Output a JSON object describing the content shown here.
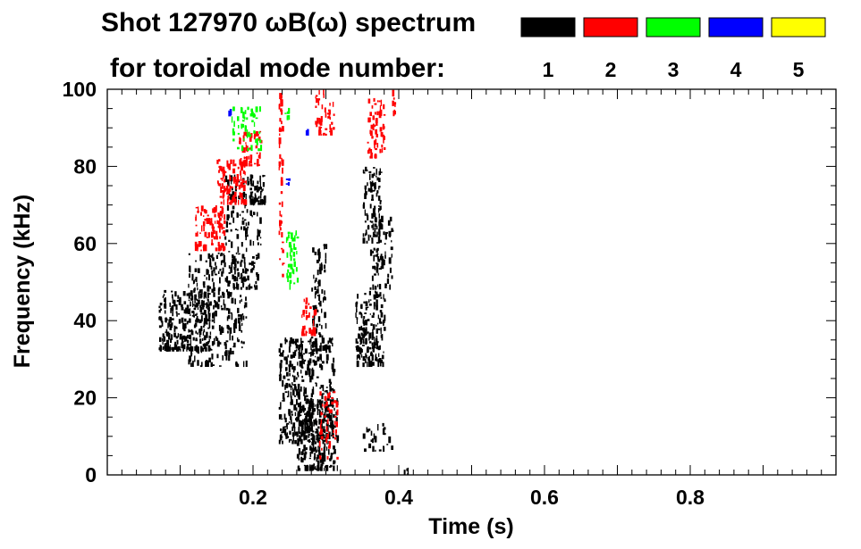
{
  "header": {
    "title": "Shot 127970 ωB(ω) spectrum",
    "subtitle": "for toroidal mode number:"
  },
  "legend": {
    "placement": "top-right",
    "items": [
      {
        "label": "1",
        "color": "#000000"
      },
      {
        "label": "2",
        "color": "#ff0000"
      },
      {
        "label": "3",
        "color": "#00ff00"
      },
      {
        "label": "4",
        "color": "#0000ff"
      },
      {
        "label": "5",
        "color": "#ffff00"
      }
    ]
  },
  "chart_data": {
    "type": "heatmap",
    "title": "Shot 127970 ωB(ω) spectrum",
    "subtitle": "for toroidal mode number:",
    "xlabel": "Time (s)",
    "ylabel": "Frequency (kHz)",
    "xlim": [
      0,
      1.0
    ],
    "ylim": [
      0,
      100
    ],
    "x_ticks": [
      {
        "value": 0.2,
        "label": "0.2"
      },
      {
        "value": 0.4,
        "label": "0.4"
      },
      {
        "value": 0.6,
        "label": "0.6"
      },
      {
        "value": 0.8,
        "label": "0.8"
      }
    ],
    "y_ticks": [
      {
        "value": 0,
        "label": "0"
      },
      {
        "value": 20,
        "label": "20"
      },
      {
        "value": 40,
        "label": "40"
      },
      {
        "value": 60,
        "label": "60"
      },
      {
        "value": 80,
        "label": "80"
      },
      {
        "value": 100,
        "label": "100"
      }
    ],
    "grid": false,
    "series": [
      {
        "name": "1",
        "color": "#000000",
        "regions": [
          {
            "x": [
              0.07,
              0.14
            ],
            "y": [
              32,
              48
            ],
            "density": 0.55
          },
          {
            "x": [
              0.11,
              0.19
            ],
            "y": [
              28,
              58
            ],
            "density": 0.3
          },
          {
            "x": [
              0.16,
              0.21
            ],
            "y": [
              48,
              78
            ],
            "density": 0.25
          },
          {
            "x": [
              0.195,
              0.215
            ],
            "y": [
              70,
              78
            ],
            "density": 0.75
          },
          {
            "x": [
              0.235,
              0.31
            ],
            "y": [
              8,
              36
            ],
            "density": 0.45
          },
          {
            "x": [
              0.26,
              0.315
            ],
            "y": [
              1,
              20
            ],
            "density": 0.6
          },
          {
            "x": [
              0.28,
              0.3
            ],
            "y": [
              32,
              60
            ],
            "density": 0.35
          },
          {
            "x": [
              0.34,
              0.38
            ],
            "y": [
              28,
              48
            ],
            "density": 0.55
          },
          {
            "x": [
              0.35,
              0.375
            ],
            "y": [
              60,
              80
            ],
            "density": 0.45
          },
          {
            "x": [
              0.36,
              0.39
            ],
            "y": [
              48,
              68
            ],
            "density": 0.3
          },
          {
            "x": [
              0.35,
              0.39
            ],
            "y": [
              6,
              14
            ],
            "density": 0.2
          },
          {
            "x": [
              0.405,
              0.415
            ],
            "y": [
              0,
              2
            ],
            "density": 0.5
          }
        ]
      },
      {
        "name": "2",
        "color": "#ff0000",
        "regions": [
          {
            "x": [
              0.12,
              0.16
            ],
            "y": [
              58,
              70
            ],
            "density": 0.55
          },
          {
            "x": [
              0.15,
              0.19
            ],
            "y": [
              70,
              82
            ],
            "density": 0.55
          },
          {
            "x": [
              0.18,
              0.21
            ],
            "y": [
              80,
              90
            ],
            "density": 0.45
          },
          {
            "x": [
              0.235,
              0.24
            ],
            "y": [
              50,
              100
            ],
            "density": 0.5
          },
          {
            "x": [
              0.265,
              0.285
            ],
            "y": [
              36,
              46
            ],
            "density": 0.5
          },
          {
            "x": [
              0.285,
              0.31
            ],
            "y": [
              88,
              100
            ],
            "density": 0.4
          },
          {
            "x": [
              0.29,
              0.315
            ],
            "y": [
              4,
              22
            ],
            "density": 0.3
          },
          {
            "x": [
              0.355,
              0.38
            ],
            "y": [
              82,
              98
            ],
            "density": 0.4
          },
          {
            "x": [
              0.39,
              0.395
            ],
            "y": [
              92,
              100
            ],
            "density": 0.6
          }
        ]
      },
      {
        "name": "3",
        "color": "#00ff00",
        "regions": [
          {
            "x": [
              0.17,
              0.21
            ],
            "y": [
              84,
              96
            ],
            "density": 0.3
          },
          {
            "x": [
              0.245,
              0.26
            ],
            "y": [
              48,
              64
            ],
            "density": 0.4
          },
          {
            "x": [
              0.24,
              0.25
            ],
            "y": [
              92,
              98
            ],
            "density": 0.25
          }
        ]
      },
      {
        "name": "4",
        "color": "#0000ff",
        "regions": [
          {
            "x": [
              0.165,
              0.17
            ],
            "y": [
              93,
              95
            ],
            "density": 0.6
          },
          {
            "x": [
              0.245,
              0.25
            ],
            "y": [
              75,
              77
            ],
            "density": 0.6
          },
          {
            "x": [
              0.27,
              0.275
            ],
            "y": [
              88,
              90
            ],
            "density": 0.6
          }
        ]
      },
      {
        "name": "5",
        "color": "#ffff00",
        "regions": []
      }
    ]
  }
}
